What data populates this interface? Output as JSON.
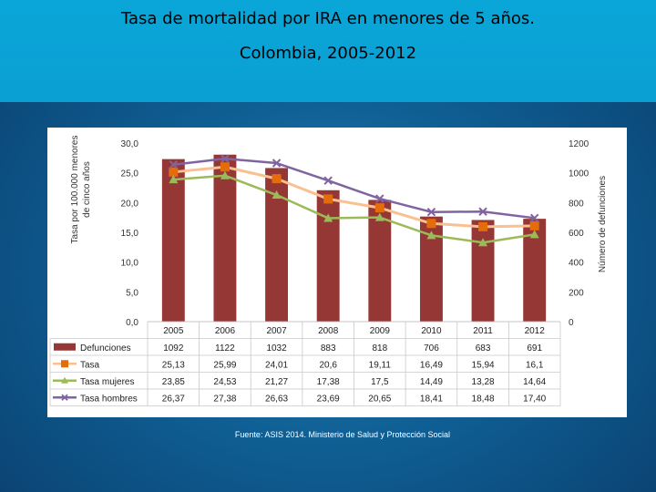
{
  "slide": {
    "title_line1": "Tasa de mortalidad por IRA en menores de 5 años.",
    "title_line2": "Colombia, 2005-2012",
    "source": "Fuente: ASIS 2014. Ministerio de Salud y Protección Social"
  },
  "chart_data": {
    "type": "bar",
    "title": "Tasa de mortalidad por IRA en menores de 5 años. Colombia, 2005-2012",
    "categories": [
      "2005",
      "2006",
      "2007",
      "2008",
      "2009",
      "2010",
      "2011",
      "2012"
    ],
    "ylabel_left_line1": "Tasa por 100.000 menores",
    "ylabel_left_line2": "de cinco años",
    "ylabel_right": "Número de defunciones",
    "ylim_left": [
      0,
      30
    ],
    "ylim_right": [
      0,
      1200
    ],
    "left_ticks": [
      "0,0",
      "5,0",
      "10,0",
      "15,0",
      "20,0",
      "25,0",
      "30,0"
    ],
    "right_ticks": [
      "0",
      "200",
      "400",
      "600",
      "800",
      "1000",
      "1200"
    ],
    "grid": false,
    "legend_position": "bottom data table",
    "series": [
      {
        "name": "Defunciones",
        "type": "bar",
        "axis": "right",
        "color": "#953735",
        "values": [
          1092,
          1122,
          1032,
          883,
          818,
          706,
          683,
          691
        ],
        "labels": [
          "1092",
          "1122",
          "1032",
          "883",
          "818",
          "706",
          "683",
          "691"
        ]
      },
      {
        "name": "Tasa",
        "type": "line",
        "axis": "left",
        "color": "#fac090",
        "marker": "square",
        "marker_color": "#e46c0a",
        "values": [
          25.13,
          25.99,
          24.01,
          20.6,
          19.11,
          16.49,
          15.94,
          16.1
        ],
        "labels": [
          "25,13",
          "25,99",
          "24,01",
          "20,6",
          "19,11",
          "16,49",
          "15,94",
          "16,1"
        ]
      },
      {
        "name": "Tasa mujeres",
        "type": "line",
        "axis": "left",
        "color": "#9bbb59",
        "marker": "triangle",
        "values": [
          23.85,
          24.53,
          21.27,
          17.38,
          17.5,
          14.49,
          13.28,
          14.64
        ],
        "labels": [
          "23,85",
          "24,53",
          "21,27",
          "17,38",
          "17,5",
          "14,49",
          "13,28",
          "14,64"
        ]
      },
      {
        "name": "Tasa hombres",
        "type": "line",
        "axis": "left",
        "color": "#8064a2",
        "marker": "x",
        "values": [
          26.37,
          27.38,
          26.63,
          23.69,
          20.65,
          18.41,
          18.48,
          17.4
        ],
        "labels": [
          "26,37",
          "27,38",
          "26,63",
          "23,69",
          "20,65",
          "18,41",
          "18,48",
          "17,40"
        ]
      }
    ]
  }
}
